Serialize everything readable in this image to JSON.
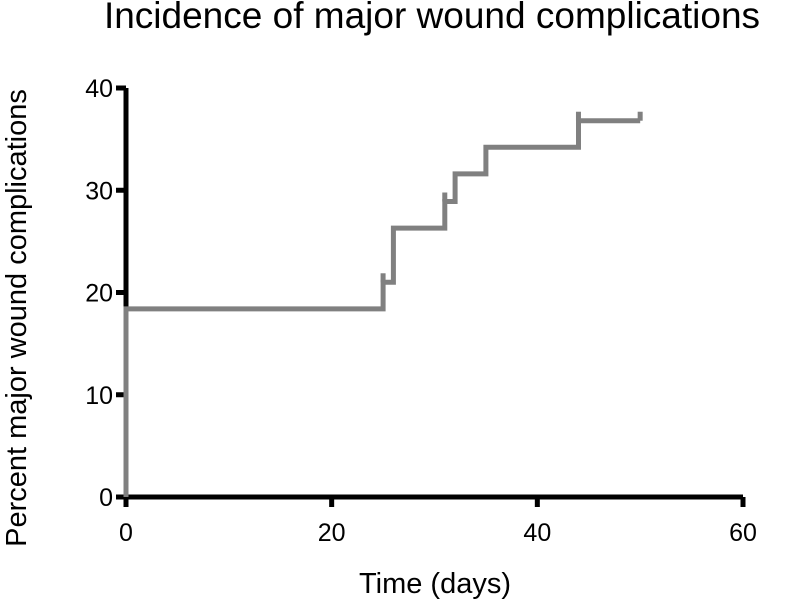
{
  "chart_data": {
    "type": "line",
    "subtype": "step",
    "title": "Incidence of major wound complications",
    "xlabel": "Time (days)",
    "ylabel": "Percent major wound complications",
    "xlim": [
      0,
      60
    ],
    "ylim": [
      0,
      40
    ],
    "xticks": [
      0,
      20,
      40,
      60
    ],
    "yticks": [
      0,
      10,
      20,
      30,
      40
    ],
    "grid": false,
    "series": [
      {
        "color": "#808080",
        "x": [
          0,
          0,
          25,
          25,
          26,
          26,
          31,
          31,
          32,
          32,
          35,
          35,
          44,
          44,
          50
        ],
        "y": [
          0,
          18.4,
          18.4,
          21.0,
          21.0,
          26.3,
          26.3,
          28.9,
          28.9,
          31.6,
          31.6,
          34.2,
          34.2,
          36.8,
          36.8
        ],
        "censor_marks": [
          {
            "x": 25,
            "y": 21.0
          },
          {
            "x": 31,
            "y": 28.9
          },
          {
            "x": 44,
            "y": 36.8
          },
          {
            "x": 50,
            "y": 36.8
          }
        ]
      }
    ]
  }
}
